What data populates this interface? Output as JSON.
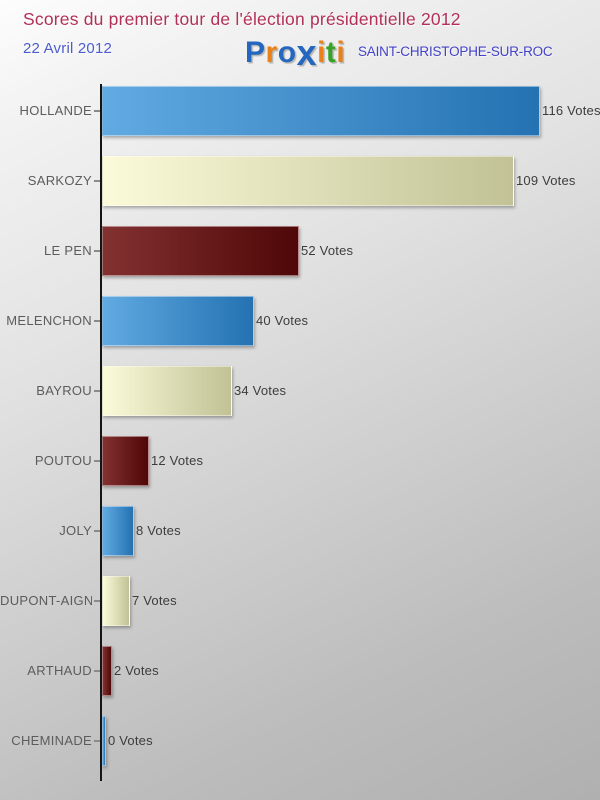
{
  "header": {
    "title": "Scores du premier tour de l'élection présidentielle 2012",
    "title_color": "#b23058",
    "date": "22 Avril 2012",
    "date_color": "#4d5ccf",
    "location": "SAINT-CHRISTOPHE-SUR-ROC",
    "location_color": "#4342c9",
    "logo": {
      "brand": "Proxiti",
      "letters": [
        {
          "ch": "P",
          "color": "#2566bf",
          "big": false
        },
        {
          "ch": "r",
          "color": "#e8811c",
          "big": false
        },
        {
          "ch": "o",
          "color": "#2566bf",
          "big": false
        },
        {
          "ch": "x",
          "color": "#2566bf",
          "big": true
        },
        {
          "ch": "i",
          "color": "#e8811c",
          "big": false
        },
        {
          "ch": "t",
          "color": "#37a226",
          "big": false
        },
        {
          "ch": "i",
          "color": "#e8811c",
          "big": false
        }
      ]
    }
  },
  "chart_data": {
    "type": "bar",
    "orientation": "horizontal",
    "title": "Scores du premier tour de l'élection présidentielle 2012",
    "categories": [
      "HOLLANDE",
      "SARKOZY",
      "LE PEN",
      "MELENCHON",
      "BAYROU",
      "POUTOU",
      "JOLY",
      "DUPONT-AIGNAN",
      "ARTHAUD",
      "CHEMINADE"
    ],
    "values": [
      116,
      109,
      52,
      40,
      34,
      12,
      8,
      7,
      2,
      0
    ],
    "value_suffix": "Votes",
    "xlim": [
      0,
      116
    ],
    "grid": false,
    "legend": false,
    "bar_color_keys": [
      "blue",
      "cream",
      "darkred",
      "blue",
      "cream",
      "darkred",
      "blue",
      "cream",
      "darkred",
      "blue"
    ],
    "palette": {
      "blue": {
        "from": "#61aae2",
        "to": "#2472b2"
      },
      "cream": {
        "from": "#fbfbda",
        "to": "#c2c296"
      },
      "darkred": {
        "from": "#833131",
        "to": "#4f0707"
      }
    },
    "label_color": "#5c5c5c",
    "value_color": "#3d3d3d"
  }
}
